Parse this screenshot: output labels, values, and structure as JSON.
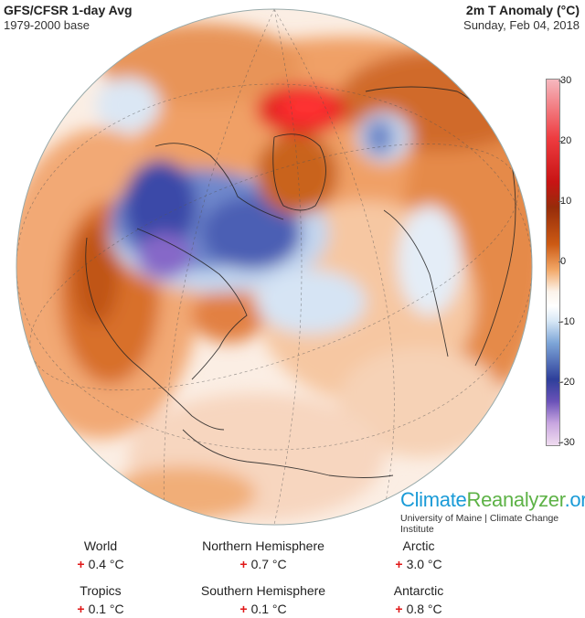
{
  "header": {
    "title": "GFS/CFSR 1-day Avg",
    "subtitle": "1979-2000 base",
    "right_title": "2m T Anomaly (°C)",
    "date": "Sunday, Feb 04, 2018"
  },
  "colorbar": {
    "ticks": [
      "30",
      "20",
      "10",
      "0",
      "-10",
      "-20",
      "-30"
    ],
    "colors": [
      "#f6b8bf",
      "#ee3c40",
      "#c81414",
      "#962c0a",
      "#cc5a14",
      "#f2a766",
      "#ffffff",
      "#7ea6d8",
      "#2e3f9a",
      "#6a52b8",
      "#f0dcf0"
    ]
  },
  "brand": {
    "part1": "Climate",
    "part2": "Reanalyzer",
    "part3": ".org",
    "sub": "University of Maine | Climate Change Institute"
  },
  "stats": [
    {
      "label": "World",
      "value": "0.4 °C",
      "sign": "+"
    },
    {
      "label": "Northern Hemisphere",
      "value": "0.7 °C",
      "sign": "+"
    },
    {
      "label": "Arctic",
      "value": "3.0 °C",
      "sign": "+"
    },
    {
      "label": "Tropics",
      "value": "0.1 °C",
      "sign": "+"
    },
    {
      "label": "Southern Hemisphere",
      "value": "0.1 °C",
      "sign": "+"
    },
    {
      "label": "Antarctic",
      "value": "0.8 °C",
      "sign": "+"
    }
  ]
}
